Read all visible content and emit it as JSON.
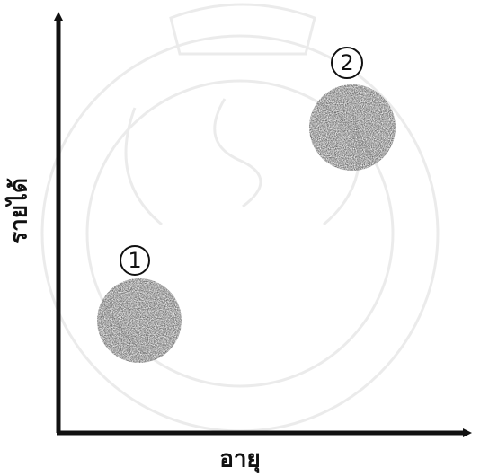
{
  "axes": {
    "x_label": "อายุ",
    "y_label": "รายได้"
  },
  "clusters": [
    {
      "label": "1"
    },
    {
      "label": "2"
    }
  ]
}
